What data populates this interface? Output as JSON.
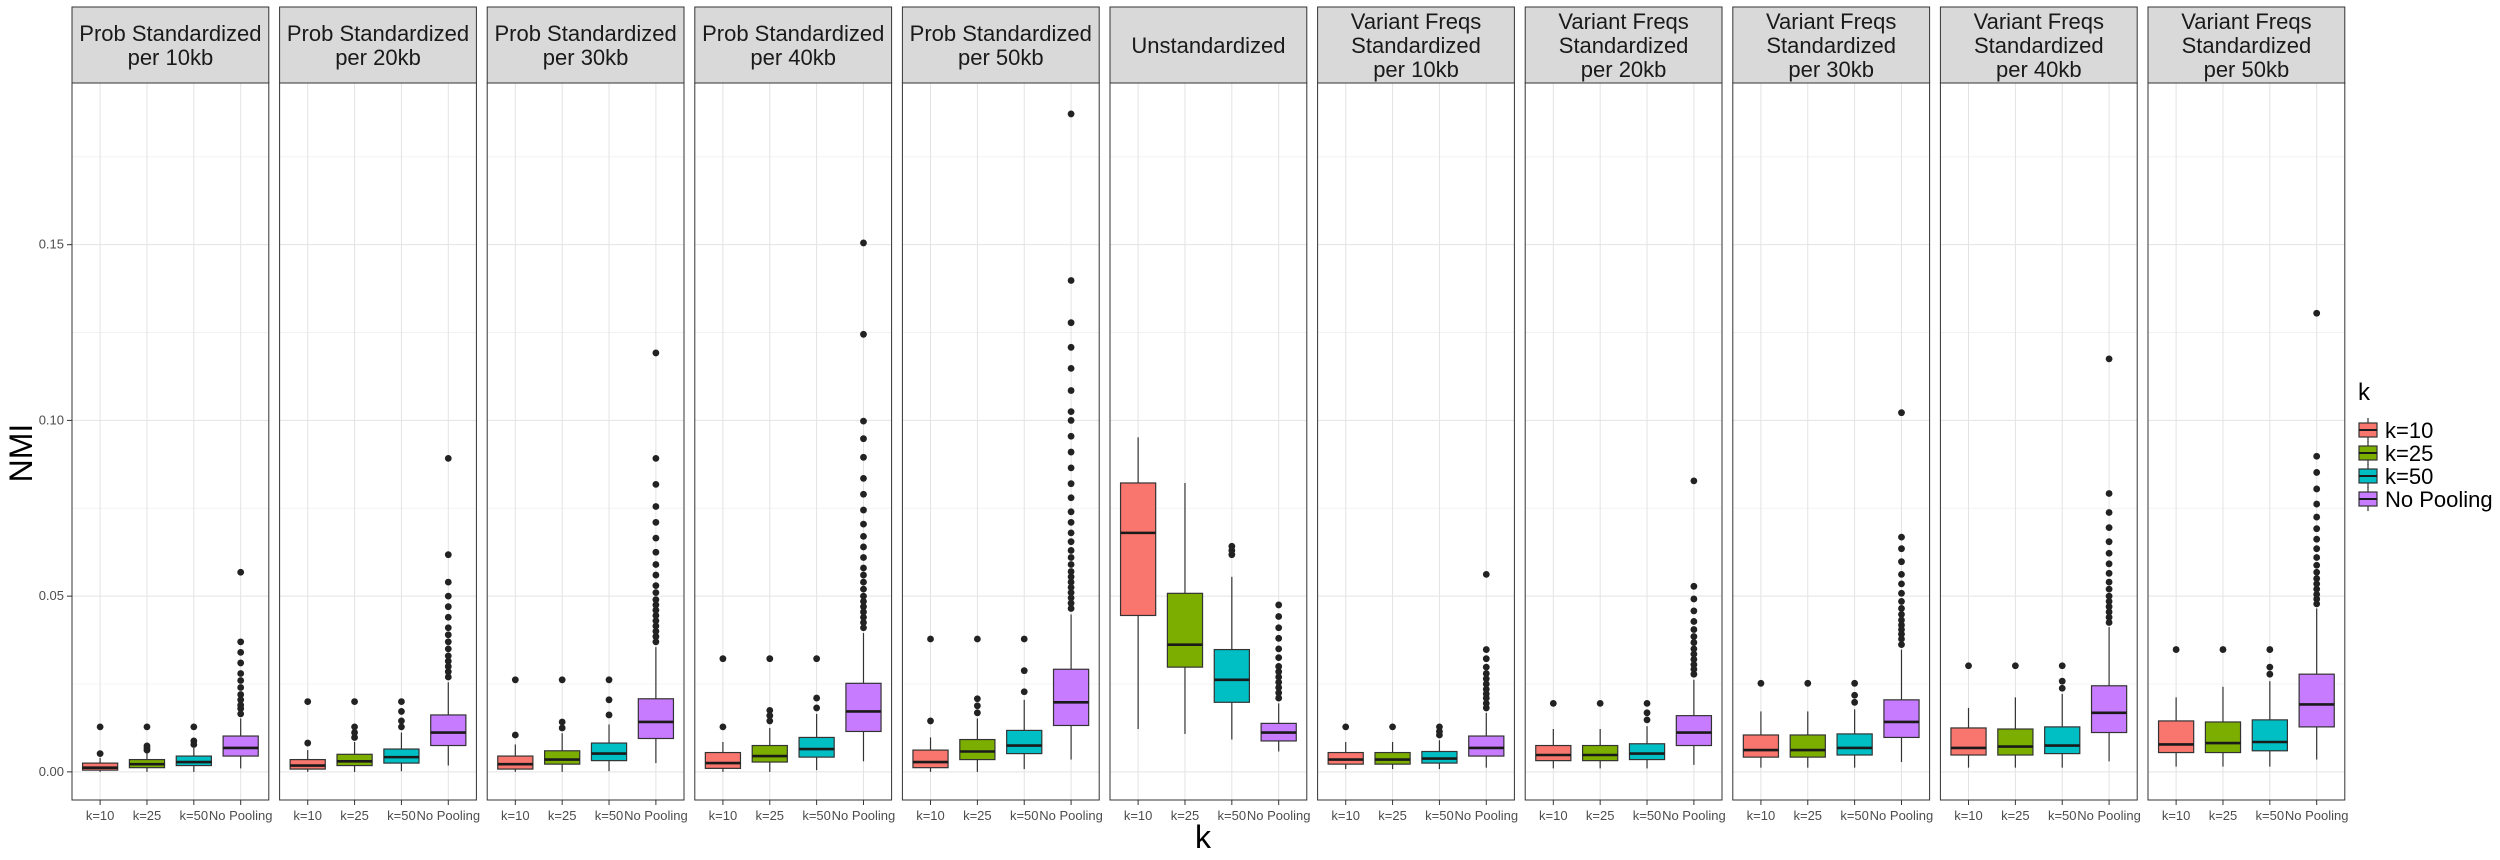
{
  "chart_data": {
    "type": "boxplot",
    "ylabel": "NMI",
    "xlabel": "k",
    "ylim": [
      -0.008,
      0.196
    ],
    "y_ticks": [
      0.0,
      0.05,
      0.1,
      0.15
    ],
    "y_tick_labels": [
      "0.00",
      "0.05",
      "0.10",
      "0.15"
    ],
    "categories": [
      "k=10",
      "k=25",
      "k=50",
      "No Pooling"
    ],
    "grid": true,
    "legend": {
      "title": "k",
      "position": "right",
      "entries": [
        {
          "label": "k=10",
          "color": "#F8766D"
        },
        {
          "label": "k=25",
          "color": "#7CAE00"
        },
        {
          "label": "k=50",
          "color": "#00BFC4"
        },
        {
          "label": "No Pooling",
          "color": "#C77CFF"
        }
      ]
    },
    "panels": [
      {
        "title": [
          "Prob Standardized",
          "per 10kb"
        ],
        "boxes": [
          {
            "q1": 0.0005,
            "median": 0.0012,
            "q3": 0.0025,
            "lo": 0.0,
            "hi": 0.004,
            "outliers": [
              0.0052,
              0.0128
            ]
          },
          {
            "q1": 0.0012,
            "median": 0.0022,
            "q3": 0.0035,
            "lo": 0.0,
            "hi": 0.0055,
            "outliers": [
              0.0062,
              0.0068,
              0.0074,
              0.0128
            ]
          },
          {
            "q1": 0.0018,
            "median": 0.0028,
            "q3": 0.0045,
            "lo": 0.0,
            "hi": 0.0068,
            "outliers": [
              0.0078,
              0.0088,
              0.0128
            ]
          },
          {
            "q1": 0.0045,
            "median": 0.0068,
            "q3": 0.0102,
            "lo": 0.001,
            "hi": 0.0152,
            "outliers": [
              0.0165,
              0.018,
              0.019,
              0.0205,
              0.022,
              0.024,
              0.026,
              0.028,
              0.031,
              0.034,
              0.037,
              0.0568
            ]
          }
        ]
      },
      {
        "title": [
          "Prob Standardized",
          "per 20kb"
        ],
        "boxes": [
          {
            "q1": 0.0008,
            "median": 0.0018,
            "q3": 0.0035,
            "lo": 0.0,
            "hi": 0.0062,
            "outliers": [
              0.0082,
              0.02
            ]
          },
          {
            "q1": 0.0018,
            "median": 0.003,
            "q3": 0.005,
            "lo": 0.0,
            "hi": 0.0085,
            "outliers": [
              0.0098,
              0.0112,
              0.0128,
              0.02
            ]
          },
          {
            "q1": 0.0025,
            "median": 0.0042,
            "q3": 0.0065,
            "lo": 0.0002,
            "hi": 0.0112,
            "outliers": [
              0.0128,
              0.0145,
              0.0172,
              0.02
            ]
          },
          {
            "q1": 0.0075,
            "median": 0.0112,
            "q3": 0.0162,
            "lo": 0.0018,
            "hi": 0.0255,
            "outliers": [
              0.027,
              0.0285,
              0.03,
              0.0315,
              0.033,
              0.035,
              0.037,
              0.039,
              0.041,
              0.044,
              0.047,
              0.05,
              0.054,
              0.0618,
              0.0892
            ]
          }
        ]
      },
      {
        "title": [
          "Prob Standardized",
          "per 30kb"
        ],
        "boxes": [
          {
            "q1": 0.0008,
            "median": 0.0022,
            "q3": 0.0045,
            "lo": 0.0,
            "hi": 0.0078,
            "outliers": [
              0.0105,
              0.0262
            ]
          },
          {
            "q1": 0.0022,
            "median": 0.0035,
            "q3": 0.006,
            "lo": 0.0,
            "hi": 0.011,
            "outliers": [
              0.0125,
              0.0142,
              0.0262
            ]
          },
          {
            "q1": 0.0032,
            "median": 0.0052,
            "q3": 0.0082,
            "lo": 0.0002,
            "hi": 0.0135,
            "outliers": [
              0.0162,
              0.0205,
              0.0262
            ]
          },
          {
            "q1": 0.0095,
            "median": 0.0142,
            "q3": 0.0208,
            "lo": 0.0025,
            "hi": 0.0355,
            "outliers": [
              0.037,
              0.0385,
              0.04,
              0.0415,
              0.043,
              0.0445,
              0.046,
              0.0475,
              0.049,
              0.051,
              0.053,
              0.056,
              0.059,
              0.0625,
              0.0665,
              0.071,
              0.0755,
              0.0818,
              0.0892,
              0.1192
            ]
          }
        ]
      },
      {
        "title": [
          "Prob Standardized",
          "per 40kb"
        ],
        "boxes": [
          {
            "q1": 0.001,
            "median": 0.0025,
            "q3": 0.0055,
            "lo": 0.0,
            "hi": 0.0085,
            "outliers": [
              0.0128,
              0.0322
            ]
          },
          {
            "q1": 0.0028,
            "median": 0.0045,
            "q3": 0.0075,
            "lo": 0.0,
            "hi": 0.0125,
            "outliers": [
              0.0145,
              0.016,
              0.0175,
              0.0322
            ]
          },
          {
            "q1": 0.0042,
            "median": 0.0065,
            "q3": 0.0098,
            "lo": 0.0005,
            "hi": 0.0165,
            "outliers": [
              0.0182,
              0.021,
              0.0322
            ]
          },
          {
            "q1": 0.0115,
            "median": 0.0172,
            "q3": 0.0252,
            "lo": 0.003,
            "hi": 0.0395,
            "outliers": [
              0.041,
              0.0425,
              0.044,
              0.0455,
              0.047,
              0.0485,
              0.05,
              0.052,
              0.054,
              0.056,
              0.058,
              0.061,
              0.064,
              0.067,
              0.0705,
              0.0745,
              0.079,
              0.0835,
              0.0895,
              0.0948,
              0.0998,
              0.1245,
              0.1505
            ]
          }
        ]
      },
      {
        "title": [
          "Prob Standardized",
          "per 50kb"
        ],
        "boxes": [
          {
            "q1": 0.0012,
            "median": 0.0028,
            "q3": 0.0062,
            "lo": 0.0,
            "hi": 0.0098,
            "outliers": [
              0.0145,
              0.0378
            ]
          },
          {
            "q1": 0.0035,
            "median": 0.0058,
            "q3": 0.0092,
            "lo": 0.0,
            "hi": 0.0152,
            "outliers": [
              0.0168,
              0.0188,
              0.0208,
              0.0378
            ]
          },
          {
            "q1": 0.0052,
            "median": 0.0075,
            "q3": 0.0118,
            "lo": 0.0008,
            "hi": 0.0205,
            "outliers": [
              0.0228,
              0.0288,
              0.0378
            ]
          },
          {
            "q1": 0.0132,
            "median": 0.0198,
            "q3": 0.0292,
            "lo": 0.0035,
            "hi": 0.0448,
            "outliers": [
              0.0465,
              0.048,
              0.0495,
              0.051,
              0.0525,
              0.054,
              0.0555,
              0.057,
              0.059,
              0.061,
              0.063,
              0.0655,
              0.068,
              0.071,
              0.074,
              0.078,
              0.082,
              0.0865,
              0.091,
              0.0955,
              0.1,
              0.1025,
              0.1085,
              0.1148,
              0.1208,
              0.1278,
              0.1398,
              0.1872
            ]
          }
        ]
      },
      {
        "title": [
          "Unstandardized"
        ],
        "boxes": [
          {
            "q1": 0.0445,
            "median": 0.068,
            "q3": 0.0822,
            "lo": 0.0122,
            "hi": 0.0952,
            "outliers": []
          },
          {
            "q1": 0.0298,
            "median": 0.0362,
            "q3": 0.0508,
            "lo": 0.0108,
            "hi": 0.0822,
            "outliers": []
          },
          {
            "q1": 0.0198,
            "median": 0.0262,
            "q3": 0.0348,
            "lo": 0.0092,
            "hi": 0.0555,
            "outliers": [
              0.0618,
              0.063,
              0.0642
            ]
          },
          {
            "q1": 0.0088,
            "median": 0.0112,
            "q3": 0.0138,
            "lo": 0.0058,
            "hi": 0.0195,
            "outliers": [
              0.021,
              0.0225,
              0.024,
              0.0255,
              0.027,
              0.0285,
              0.03,
              0.0325,
              0.035,
              0.038,
              0.041,
              0.0442,
              0.0475
            ]
          }
        ]
      },
      {
        "title": [
          "Variant Freqs",
          "Standardized",
          "per 10kb"
        ],
        "boxes": [
          {
            "q1": 0.0022,
            "median": 0.0035,
            "q3": 0.0055,
            "lo": 0.0008,
            "hi": 0.0085,
            "outliers": [
              0.0128
            ]
          },
          {
            "q1": 0.0022,
            "median": 0.0035,
            "q3": 0.0055,
            "lo": 0.0008,
            "hi": 0.0085,
            "outliers": [
              0.0128
            ]
          },
          {
            "q1": 0.0025,
            "median": 0.0038,
            "q3": 0.0058,
            "lo": 0.0008,
            "hi": 0.009,
            "outliers": [
              0.0105,
              0.0115,
              0.0128
            ]
          },
          {
            "q1": 0.0045,
            "median": 0.0068,
            "q3": 0.0102,
            "lo": 0.0012,
            "hi": 0.0168,
            "outliers": [
              0.0182,
              0.0195,
              0.021,
              0.0222,
              0.0235,
              0.025,
              0.0265,
              0.028,
              0.0298,
              0.0322,
              0.0348,
              0.0562
            ]
          }
        ]
      },
      {
        "title": [
          "Variant Freqs",
          "Standardized",
          "per 20kb"
        ],
        "boxes": [
          {
            "q1": 0.0032,
            "median": 0.0048,
            "q3": 0.0075,
            "lo": 0.001,
            "hi": 0.0122,
            "outliers": [
              0.0195
            ]
          },
          {
            "q1": 0.0032,
            "median": 0.0048,
            "q3": 0.0075,
            "lo": 0.001,
            "hi": 0.0122,
            "outliers": [
              0.0195
            ]
          },
          {
            "q1": 0.0035,
            "median": 0.0052,
            "q3": 0.008,
            "lo": 0.001,
            "hi": 0.013,
            "outliers": [
              0.0148,
              0.0168,
              0.0195
            ]
          },
          {
            "q1": 0.0075,
            "median": 0.0112,
            "q3": 0.016,
            "lo": 0.002,
            "hi": 0.0262,
            "outliers": [
              0.0278,
              0.0292,
              0.0305,
              0.032,
              0.0335,
              0.035,
              0.0368,
              0.0385,
              0.0405,
              0.0428,
              0.0458,
              0.0492,
              0.0528,
              0.0828
            ]
          }
        ]
      },
      {
        "title": [
          "Variant Freqs",
          "Standardized",
          "per 30kb"
        ],
        "boxes": [
          {
            "q1": 0.0042,
            "median": 0.0062,
            "q3": 0.0105,
            "lo": 0.0012,
            "hi": 0.0172,
            "outliers": [
              0.0252
            ]
          },
          {
            "q1": 0.0042,
            "median": 0.0062,
            "q3": 0.0105,
            "lo": 0.0012,
            "hi": 0.0172,
            "outliers": [
              0.0252
            ]
          },
          {
            "q1": 0.0048,
            "median": 0.0068,
            "q3": 0.0108,
            "lo": 0.0012,
            "hi": 0.0178,
            "outliers": [
              0.0198,
              0.0218,
              0.0252
            ]
          },
          {
            "q1": 0.0098,
            "median": 0.0142,
            "q3": 0.0205,
            "lo": 0.0028,
            "hi": 0.0348,
            "outliers": [
              0.0362,
              0.0378,
              0.0392,
              0.0405,
              0.0418,
              0.0432,
              0.0448,
              0.0465,
              0.0485,
              0.0508,
              0.0535,
              0.0562,
              0.0598,
              0.0635,
              0.0668,
              0.1022
            ]
          }
        ]
      },
      {
        "title": [
          "Variant Freqs",
          "Standardized",
          "per 40kb"
        ],
        "boxes": [
          {
            "q1": 0.0048,
            "median": 0.0068,
            "q3": 0.0125,
            "lo": 0.0012,
            "hi": 0.0182,
            "outliers": [
              0.0302
            ]
          },
          {
            "q1": 0.0048,
            "median": 0.0072,
            "q3": 0.0122,
            "lo": 0.0012,
            "hi": 0.0212,
            "outliers": [
              0.0302
            ]
          },
          {
            "q1": 0.0052,
            "median": 0.0075,
            "q3": 0.0128,
            "lo": 0.0012,
            "hi": 0.0222,
            "outliers": [
              0.0238,
              0.0258,
              0.0302
            ]
          },
          {
            "q1": 0.0112,
            "median": 0.0168,
            "q3": 0.0245,
            "lo": 0.003,
            "hi": 0.0412,
            "outliers": [
              0.0425,
              0.044,
              0.0455,
              0.047,
              0.0485,
              0.05,
              0.052,
              0.054,
              0.0565,
              0.0592,
              0.0622,
              0.0655,
              0.0695,
              0.0738,
              0.0792,
              0.1175
            ]
          }
        ]
      },
      {
        "title": [
          "Variant Freqs",
          "Standardized",
          "per 50kb"
        ],
        "boxes": [
          {
            "q1": 0.0055,
            "median": 0.0078,
            "q3": 0.0145,
            "lo": 0.0015,
            "hi": 0.0212,
            "outliers": [
              0.0348
            ]
          },
          {
            "q1": 0.0055,
            "median": 0.0082,
            "q3": 0.0142,
            "lo": 0.0015,
            "hi": 0.0242,
            "outliers": [
              0.0348
            ]
          },
          {
            "q1": 0.006,
            "median": 0.0085,
            "q3": 0.0148,
            "lo": 0.0015,
            "hi": 0.0258,
            "outliers": [
              0.0278,
              0.0298,
              0.0348
            ]
          },
          {
            "q1": 0.0128,
            "median": 0.0192,
            "q3": 0.0278,
            "lo": 0.0035,
            "hi": 0.0465,
            "outliers": [
              0.0478,
              0.0492,
              0.0505,
              0.052,
              0.0535,
              0.055,
              0.0568,
              0.0588,
              0.061,
              0.0635,
              0.0662,
              0.0692,
              0.0725,
              0.0762,
              0.0805,
              0.0852,
              0.0898,
              0.1305
            ]
          }
        ]
      }
    ]
  }
}
